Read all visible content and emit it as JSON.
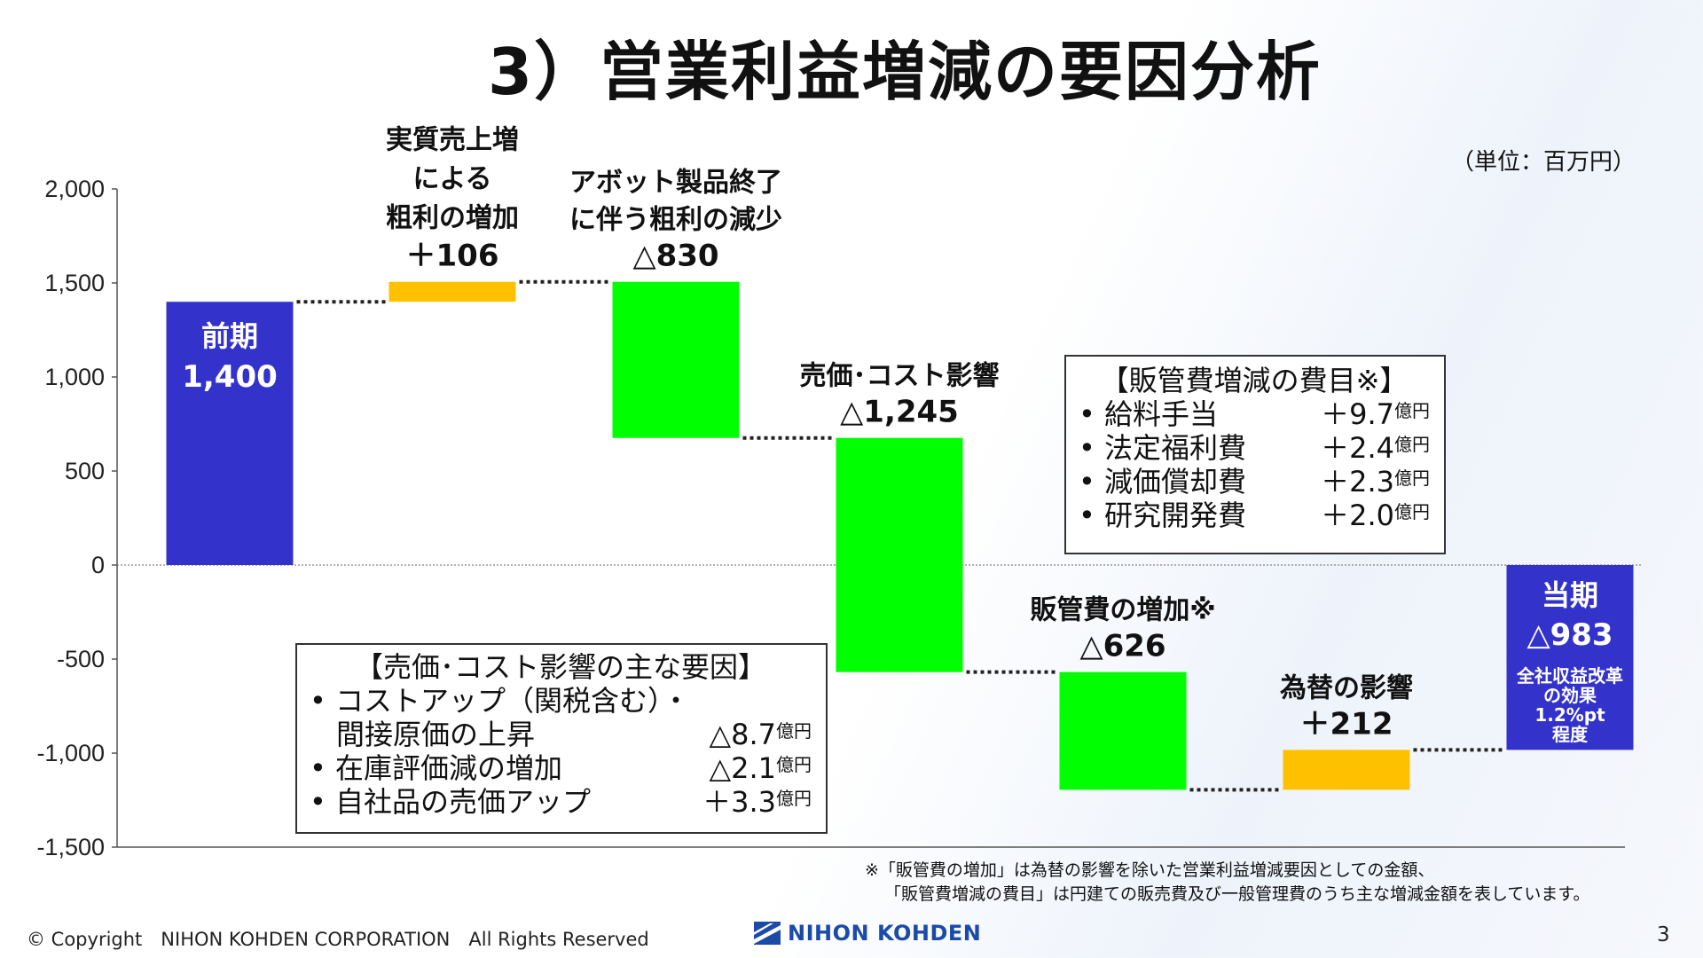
{
  "title": "3）営業利益増減の要因分析",
  "unit": "（単位：百万円）",
  "chart_data": {
    "type": "waterfall",
    "ylim": [
      -1500,
      2000
    ],
    "yticks": [
      2000,
      1500,
      1000,
      500,
      0,
      -500,
      -1000,
      -1500
    ],
    "ytick_labels": [
      "2,000",
      "1,500",
      "1,000",
      "500",
      "0",
      "-500",
      "-1,000",
      "-1,500"
    ],
    "steps": [
      {
        "label": [
          "前期",
          "1,400"
        ],
        "start": 0,
        "end": 1400,
        "color": "#3333cc",
        "kind": "total"
      },
      {
        "label": [
          "実質売上増",
          "による",
          "粗利の増加",
          "＋106"
        ],
        "start": 1400,
        "end": 1506,
        "color": "#ffc000",
        "kind": "increase"
      },
      {
        "label": [
          "アボット製品終了",
          "に伴う粗利の減少",
          "△830"
        ],
        "start": 1506,
        "end": 676,
        "color": "#00ff00",
        "kind": "decrease"
      },
      {
        "label": [
          "売価･コスト影響",
          "△1,245"
        ],
        "start": 676,
        "end": -569,
        "color": "#00ff00",
        "kind": "decrease"
      },
      {
        "label": [
          "販管費の増加※",
          "△626"
        ],
        "start": -569,
        "end": -1195,
        "color": "#00ff00",
        "kind": "decrease"
      },
      {
        "label": [
          "為替の影響",
          "＋212"
        ],
        "start": -1195,
        "end": -983,
        "color": "#ffc000",
        "kind": "increase"
      },
      {
        "label": [
          "当期",
          "△983",
          "全社収益改革",
          "の効果",
          "1.2%pt",
          "程度"
        ],
        "start": 0,
        "end": -983,
        "color": "#3333cc",
        "kind": "total"
      }
    ]
  },
  "sga_box": {
    "title": "【販管費増減の費目※】",
    "items": [
      {
        "label": "給料手当",
        "value": "＋9.7",
        "unit": "億円"
      },
      {
        "label": "法定福利費",
        "value": "＋2.4",
        "unit": "億円"
      },
      {
        "label": "減価償却費",
        "value": "＋2.3",
        "unit": "億円"
      },
      {
        "label": "研究開発費",
        "value": "＋2.0",
        "unit": "億円"
      }
    ]
  },
  "cost_box": {
    "title": "【売価･コスト影響の主な要因】",
    "item1_line1": "コストアップ（関税含む）・",
    "item1_line2": "間接原価の上昇",
    "item1_value": "△8.7",
    "item2_label": "在庫評価減の増加",
    "item2_value": "△2.1",
    "item3_label": "自社品の売価アップ",
    "item3_value": "＋3.3",
    "unit": "億円"
  },
  "note": {
    "line1": "※「販管費の増加」は為替の影響を除いた営業利益増減要因としての金額、",
    "line2": "「販管費増減の費目」は円建ての販売費及び一般管理費のうち主な増減金額を表しています。"
  },
  "footer": {
    "copyright": "© Copyright　NIHON KOHDEN CORPORATION　All Rights Reserved",
    "logo_text": "NIHON KOHDEN",
    "page": "3"
  }
}
